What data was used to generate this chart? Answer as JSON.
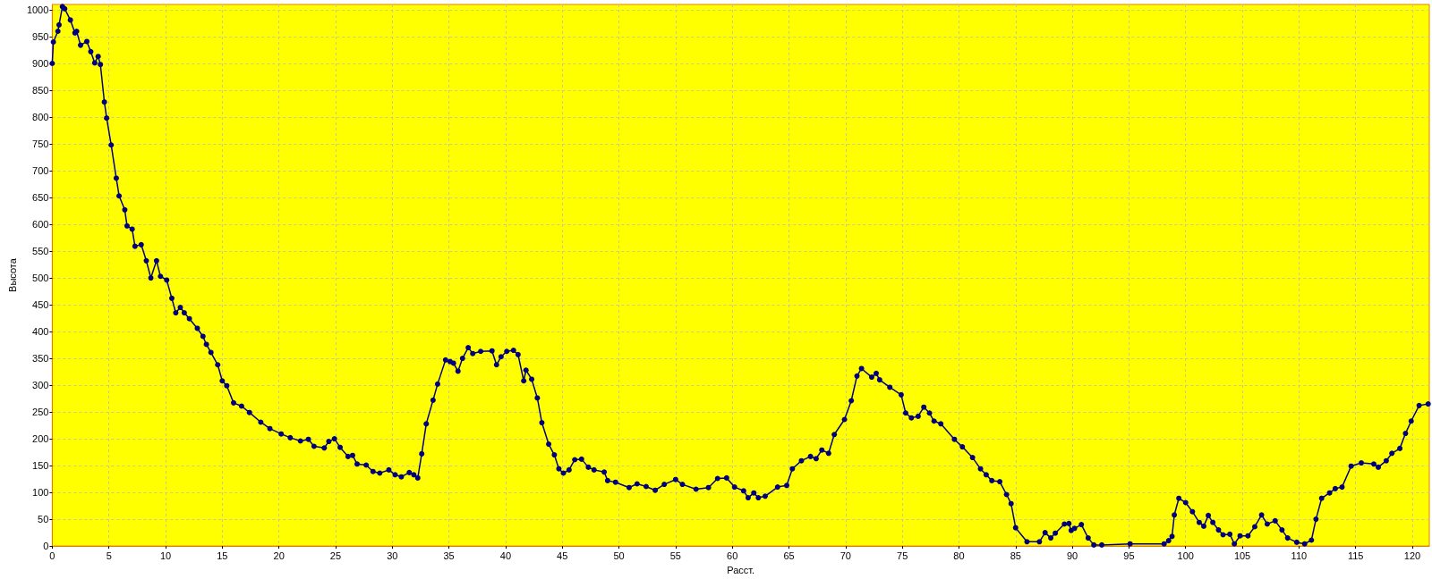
{
  "chart_data": {
    "type": "line",
    "xlabel": "Расст.",
    "ylabel": "Высота",
    "x": [
      0,
      0.1,
      0.5,
      0.6,
      0.9,
      1.1,
      1.6,
      2.0,
      2.15,
      2.5,
      3.05,
      3.4,
      3.75,
      4.05,
      4.25,
      4.6,
      4.8,
      5.2,
      5.65,
      5.9,
      6.4,
      6.6,
      7.05,
      7.3,
      7.85,
      8.3,
      8.7,
      9.2,
      9.55,
      10.1,
      10.55,
      10.9,
      11.3,
      11.65,
      12.1,
      12.8,
      13.3,
      13.6,
      14.0,
      14.6,
      15.0,
      15.4,
      16.0,
      16.7,
      17.4,
      18.4,
      19.2,
      20.2,
      21.0,
      21.9,
      22.6,
      23.1,
      24.0,
      24.4,
      24.9,
      25.4,
      26.1,
      26.5,
      26.9,
      27.7,
      28.3,
      28.9,
      29.7,
      30.25,
      30.8,
      31.5,
      31.9,
      32.25,
      32.6,
      33.0,
      33.6,
      34.0,
      34.7,
      35.1,
      35.4,
      35.8,
      36.2,
      36.7,
      37.1,
      37.8,
      38.8,
      39.2,
      39.6,
      40.1,
      40.7,
      41.1,
      41.6,
      41.8,
      42.3,
      42.8,
      43.2,
      43.8,
      44.3,
      44.7,
      45.1,
      45.6,
      46.1,
      46.7,
      47.3,
      47.8,
      48.7,
      49.0,
      49.7,
      50.9,
      51.6,
      52.4,
      53.2,
      54.0,
      55.0,
      55.6,
      56.8,
      57.9,
      58.7,
      59.5,
      60.2,
      61.0,
      61.4,
      61.9,
      62.3,
      62.9,
      64.0,
      64.8,
      65.3,
      66.1,
      66.9,
      67.4,
      67.9,
      68.5,
      69.0,
      69.9,
      70.5,
      71.0,
      71.4,
      72.3,
      72.7,
      73.0,
      73.9,
      74.9,
      75.3,
      75.8,
      76.4,
      76.9,
      77.4,
      77.8,
      78.4,
      79.6,
      80.3,
      81.2,
      81.9,
      82.4,
      82.9,
      83.6,
      84.2,
      84.6,
      85.0,
      86.0,
      87.1,
      87.6,
      88.1,
      88.5,
      89.3,
      89.7,
      89.9,
      90.2,
      90.8,
      91.4,
      91.9,
      92.6,
      95.1,
      98.1,
      98.5,
      98.8,
      99.0,
      99.4,
      100.0,
      100.6,
      101.2,
      101.6,
      102.0,
      102.4,
      102.9,
      103.3,
      103.9,
      104.3,
      104.8,
      105.5,
      106.1,
      106.7,
      107.2,
      107.9,
      108.5,
      109.0,
      109.8,
      110.5,
      111.1,
      111.5,
      112.0,
      112.7,
      113.2,
      113.8,
      114.6,
      115.5,
      116.6,
      117.0,
      117.7,
      118.2,
      118.9,
      119.4,
      119.9,
      120.6,
      121.4
    ],
    "values": [
      900,
      940,
      960,
      972,
      1006,
      1002,
      981,
      957,
      960,
      934,
      941,
      922,
      901,
      913,
      898,
      828,
      798,
      748,
      686,
      653,
      627,
      597,
      591,
      559,
      562,
      532,
      500,
      532,
      503,
      496,
      462,
      435,
      445,
      435,
      424,
      406,
      391,
      376,
      361,
      338,
      308,
      299,
      267,
      261,
      249,
      231,
      219,
      209,
      202,
      196,
      199,
      186,
      183,
      195,
      200,
      184,
      167,
      169,
      153,
      151,
      139,
      136,
      142,
      133,
      129,
      137,
      133,
      127,
      172,
      228,
      272,
      302,
      347,
      344,
      341,
      326,
      350,
      370,
      359,
      363,
      364,
      338,
      353,
      363,
      365,
      357,
      308,
      328,
      311,
      276,
      230,
      190,
      170,
      144,
      136,
      142,
      161,
      162,
      147,
      142,
      138,
      122,
      119,
      109,
      116,
      111,
      104,
      115,
      124,
      115,
      106,
      109,
      126,
      127,
      110,
      103,
      90,
      99,
      90,
      93,
      110,
      113,
      144,
      159,
      167,
      163,
      179,
      173,
      208,
      236,
      271,
      317,
      331,
      315,
      322,
      310,
      296,
      282,
      248,
      239,
      242,
      259,
      248,
      233,
      228,
      199,
      185,
      165,
      144,
      133,
      122,
      120,
      96,
      79,
      34,
      8,
      8,
      25,
      15,
      24,
      41,
      42,
      29,
      33,
      40,
      15,
      2,
      2,
      4,
      4,
      10,
      18,
      58,
      89,
      81,
      64,
      44,
      37,
      57,
      44,
      30,
      21,
      22,
      4,
      19,
      19,
      36,
      58,
      41,
      47,
      30,
      15,
      7,
      4,
      11,
      50,
      89,
      99,
      107,
      110,
      149,
      155,
      153,
      147,
      159,
      173,
      182,
      210,
      233,
      262,
      265
    ],
    "color": "#00007f",
    "xlim": [
      0,
      121.5
    ],
    "ylim": [
      0,
      1010
    ],
    "xticks": [
      0,
      5,
      10,
      15,
      20,
      25,
      30,
      35,
      40,
      45,
      50,
      55,
      60,
      65,
      70,
      75,
      80,
      85,
      90,
      95,
      100,
      105,
      110,
      115,
      120
    ],
    "yticks": [
      0,
      50,
      100,
      150,
      200,
      250,
      300,
      350,
      400,
      450,
      500,
      550,
      600,
      650,
      700,
      750,
      800,
      850,
      900,
      950,
      1000
    ],
    "grid": true,
    "marker": "circle",
    "line_style": "solid"
  }
}
